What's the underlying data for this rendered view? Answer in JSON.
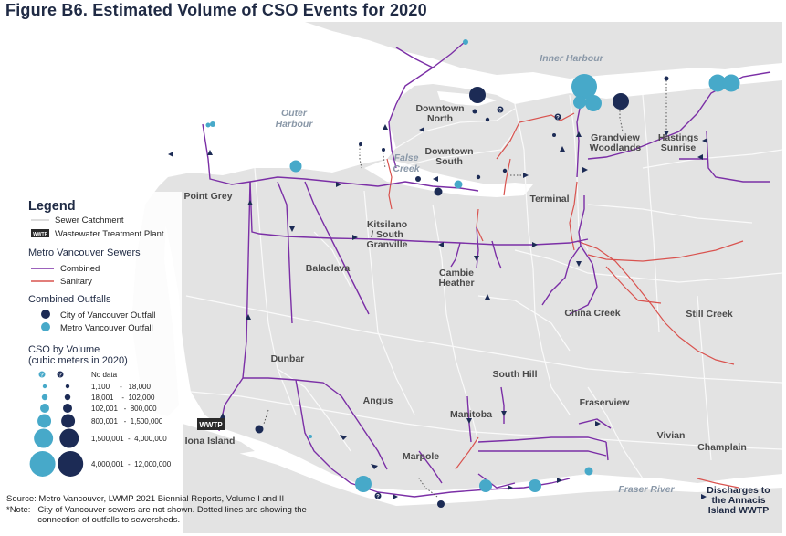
{
  "title": "Figure B6.  Estimated Volume of CSO Events for 2020",
  "colors": {
    "land": "#e3e3e3",
    "water": "#ffffff",
    "catchment_line": "#fafafa",
    "combined": "#7b2fa6",
    "sanitary": "#d9534f",
    "city_outfall": "#1c2b55",
    "metro_outfall": "#47a9c9"
  },
  "area_labels": [
    {
      "id": "downtown-north",
      "lines": [
        "Downtown",
        "North"
      ]
    },
    {
      "id": "downtown-south",
      "lines": [
        "Downtown",
        "South"
      ]
    },
    {
      "id": "grandview",
      "lines": [
        "Grandview",
        "Woodlands"
      ]
    },
    {
      "id": "hastings",
      "lines": [
        "Hastings",
        "Sunrise"
      ]
    },
    {
      "id": "point-grey",
      "lines": [
        "Point Grey"
      ]
    },
    {
      "id": "terminal",
      "lines": [
        "Terminal"
      ]
    },
    {
      "id": "kitsilano",
      "lines": [
        "Kitsilano",
        "/ South",
        "Granville"
      ]
    },
    {
      "id": "balaclava",
      "lines": [
        "Balaclava"
      ]
    },
    {
      "id": "cambie",
      "lines": [
        "Cambie",
        "Heather"
      ]
    },
    {
      "id": "china-creek",
      "lines": [
        "China Creek"
      ]
    },
    {
      "id": "still-creek",
      "lines": [
        "Still Creek"
      ]
    },
    {
      "id": "dunbar",
      "lines": [
        "Dunbar"
      ]
    },
    {
      "id": "south-hill",
      "lines": [
        "South Hill"
      ]
    },
    {
      "id": "angus",
      "lines": [
        "Angus"
      ]
    },
    {
      "id": "fraserview",
      "lines": [
        "Fraserview"
      ]
    },
    {
      "id": "manitoba",
      "lines": [
        "Manitoba"
      ]
    },
    {
      "id": "vivian",
      "lines": [
        "Vivian"
      ]
    },
    {
      "id": "champlain",
      "lines": [
        "Champlain"
      ]
    },
    {
      "id": "marpole",
      "lines": [
        "Marpole"
      ]
    },
    {
      "id": "iona",
      "lines": [
        "Iona Island"
      ]
    }
  ],
  "water_labels": [
    {
      "id": "inner-harbour",
      "lines": [
        "Inner Harbour"
      ]
    },
    {
      "id": "outer-harbour",
      "lines": [
        "Outer",
        "Harbour"
      ]
    },
    {
      "id": "false-creek",
      "lines": [
        "False",
        "Creek"
      ]
    },
    {
      "id": "fraser-river",
      "lines": [
        "Fraser River"
      ]
    }
  ],
  "wwtp_badge": "WWTP",
  "legend": {
    "heading": "Legend",
    "sewer_catchment": "Sewer Catchment",
    "wwtp": "Wastewater Treatment Plant",
    "wwtp_badge": "WWTP",
    "metro_sewers_heading": "Metro Vancouver Sewers",
    "combined": "Combined",
    "sanitary": "Sanitary",
    "outfalls_heading": "Combined Outfalls",
    "city_outfall": "City of Vancouver Outfall",
    "metro_outfall": "Metro Vancouver Outfall",
    "volume_heading_1": "CSO by Volume",
    "volume_heading_2": "(cubic meters in 2020)",
    "no_data_glyph": "?",
    "volume_classes": [
      {
        "label": "No data",
        "r": 0
      },
      {
        "label": "1,100     -   18,000",
        "r": 2.2
      },
      {
        "label": "18,001    -  102,000",
        "r": 3.2
      },
      {
        "label": "102,001   -  800,000",
        "r": 5
      },
      {
        "label": "800,001   -  1,500,000",
        "r": 7.5
      },
      {
        "label": "1,500,001  -  4,000,000",
        "r": 10.5
      },
      {
        "label": "4,000,001  -  12,000,000",
        "r": 14
      }
    ]
  },
  "source": [
    "Source: Metro Vancouver, LWMP 2021 Biennial Reports, Volume I and II",
    "*Note:   City of Vancouver sewers are not shown. Dotted lines are showing the",
    "             connection of outfalls to sewersheds."
  ],
  "discharge_note": [
    "Discharges to",
    "the Annacis",
    "Island WWTP"
  ]
}
